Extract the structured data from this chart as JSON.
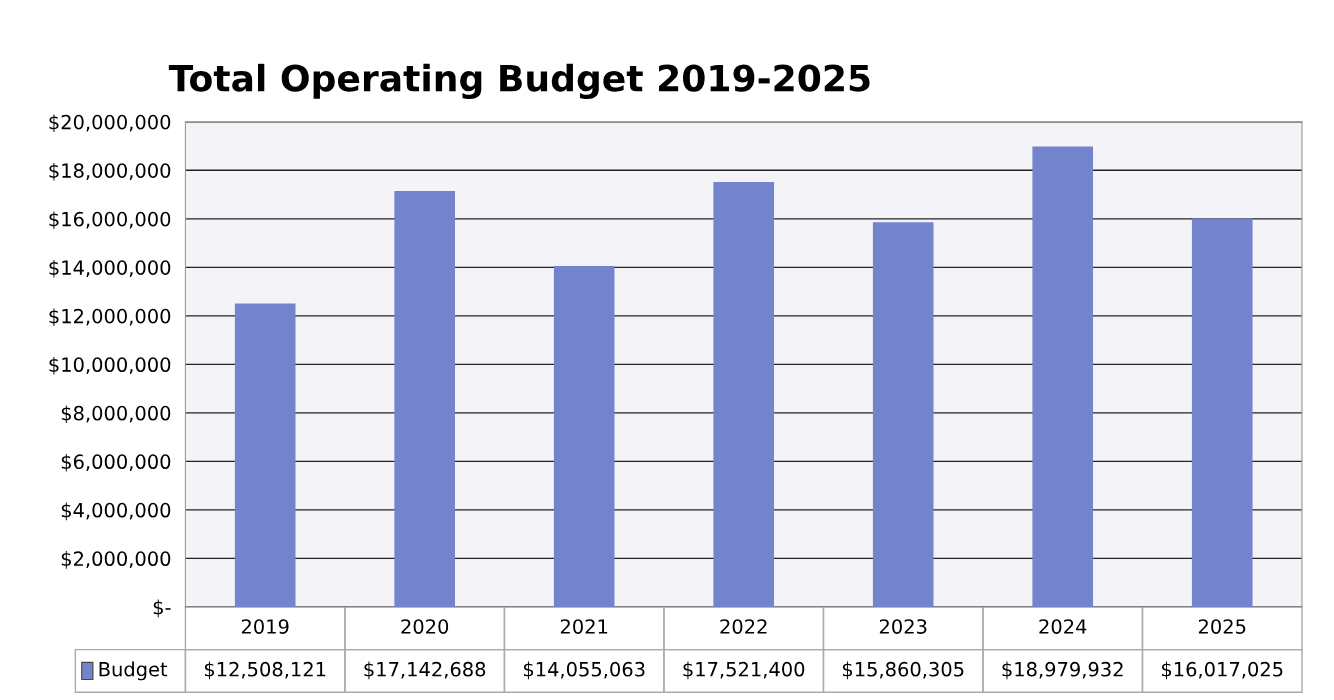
{
  "chart_data": {
    "type": "bar",
    "title": "Total Operating Budget 2019-2025",
    "categories": [
      "2019",
      "2020",
      "2021",
      "2022",
      "2023",
      "2024",
      "2025"
    ],
    "series": [
      {
        "name": "Budget",
        "color": "#7383cc",
        "values": [
          12508121,
          17142688,
          14055063,
          17521400,
          15860305,
          18979932,
          16017025
        ],
        "value_labels": [
          "$12,508,121",
          "$17,142,688",
          "$14,055,063",
          "$17,521,400",
          "$15,860,305",
          "$18,979,932",
          "$16,017,025"
        ]
      }
    ],
    "ylim": [
      0,
      20000000
    ],
    "yticks": [
      {
        "value": 0,
        "label": "$-"
      },
      {
        "value": 2000000,
        "label": "$2,000,000"
      },
      {
        "value": 4000000,
        "label": "$4,000,000"
      },
      {
        "value": 6000000,
        "label": "$6,000,000"
      },
      {
        "value": 8000000,
        "label": "$8,000,000"
      },
      {
        "value": 10000000,
        "label": "$10,000,000"
      },
      {
        "value": 12000000,
        "label": "$12,000,000"
      },
      {
        "value": 14000000,
        "label": "$14,000,000"
      },
      {
        "value": 16000000,
        "label": "$16,000,000"
      },
      {
        "value": 18000000,
        "label": "$18,000,000"
      },
      {
        "value": 20000000,
        "label": "$20,000,000"
      }
    ],
    "grid": "y",
    "legend": "bottom"
  }
}
